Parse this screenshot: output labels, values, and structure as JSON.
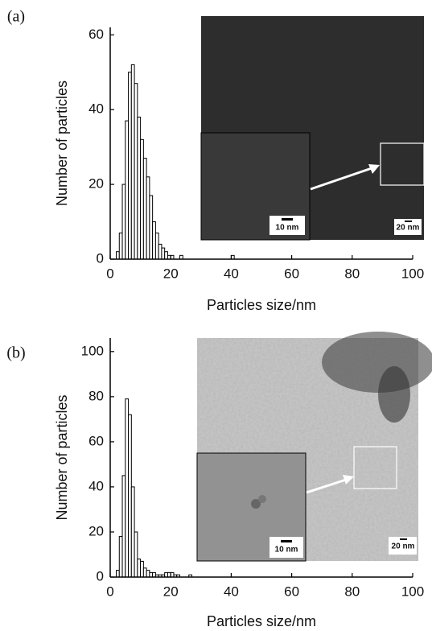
{
  "chart_data": [
    {
      "type": "histogram",
      "panel_label": "(a)",
      "xlabel": "Particles size/nm",
      "ylabel": "Number of particles",
      "bins": [
        2,
        3,
        4,
        5,
        6,
        7,
        8,
        9,
        10,
        11,
        12,
        13,
        14,
        15,
        16,
        17,
        18,
        19,
        20,
        21,
        22,
        23,
        24,
        25,
        26,
        27,
        28,
        29,
        30,
        31,
        32,
        33,
        34,
        35,
        36,
        37,
        38,
        39,
        40,
        41
      ],
      "counts": [
        2,
        7,
        20,
        37,
        50,
        52,
        47,
        38,
        32,
        27,
        22,
        17,
        10,
        7,
        4,
        3,
        2,
        1,
        1,
        0,
        0,
        1,
        0,
        0,
        0,
        0,
        0,
        0,
        0,
        0,
        0,
        0,
        0,
        0,
        0,
        0,
        0,
        0,
        1
      ],
      "color": "#ffffff",
      "edge_color": "#000000",
      "xlim": [
        0,
        100
      ],
      "ylim": [
        0,
        62
      ],
      "xticks": [
        0,
        20,
        40,
        60,
        80,
        100
      ],
      "yticks": [
        0,
        20,
        40,
        60
      ],
      "annotations": [
        "10 nm",
        "20 nm"
      ]
    },
    {
      "type": "histogram",
      "panel_label": "(b)",
      "xlabel": "Particles size/nm",
      "ylabel": "Number of particles",
      "bins": [
        2,
        3,
        4,
        5,
        6,
        7,
        8,
        9,
        10,
        11,
        12,
        13,
        14,
        15,
        16,
        17,
        18,
        19,
        20,
        21,
        22,
        23,
        24,
        25,
        26,
        27
      ],
      "counts": [
        3,
        18,
        45,
        79,
        72,
        40,
        20,
        8,
        7,
        4,
        3,
        2,
        2,
        1,
        1,
        1,
        2,
        2,
        2,
        1,
        1,
        0,
        0,
        0,
        1
      ],
      "color": "#ffffff",
      "edge_color": "#000000",
      "xlim": [
        0,
        100
      ],
      "ylim": [
        0,
        106
      ],
      "xticks": [
        0,
        20,
        40,
        60,
        80,
        100
      ],
      "yticks": [
        0,
        20,
        40,
        60,
        80,
        100
      ],
      "annotations": [
        "10 nm",
        "20 nm"
      ]
    }
  ]
}
